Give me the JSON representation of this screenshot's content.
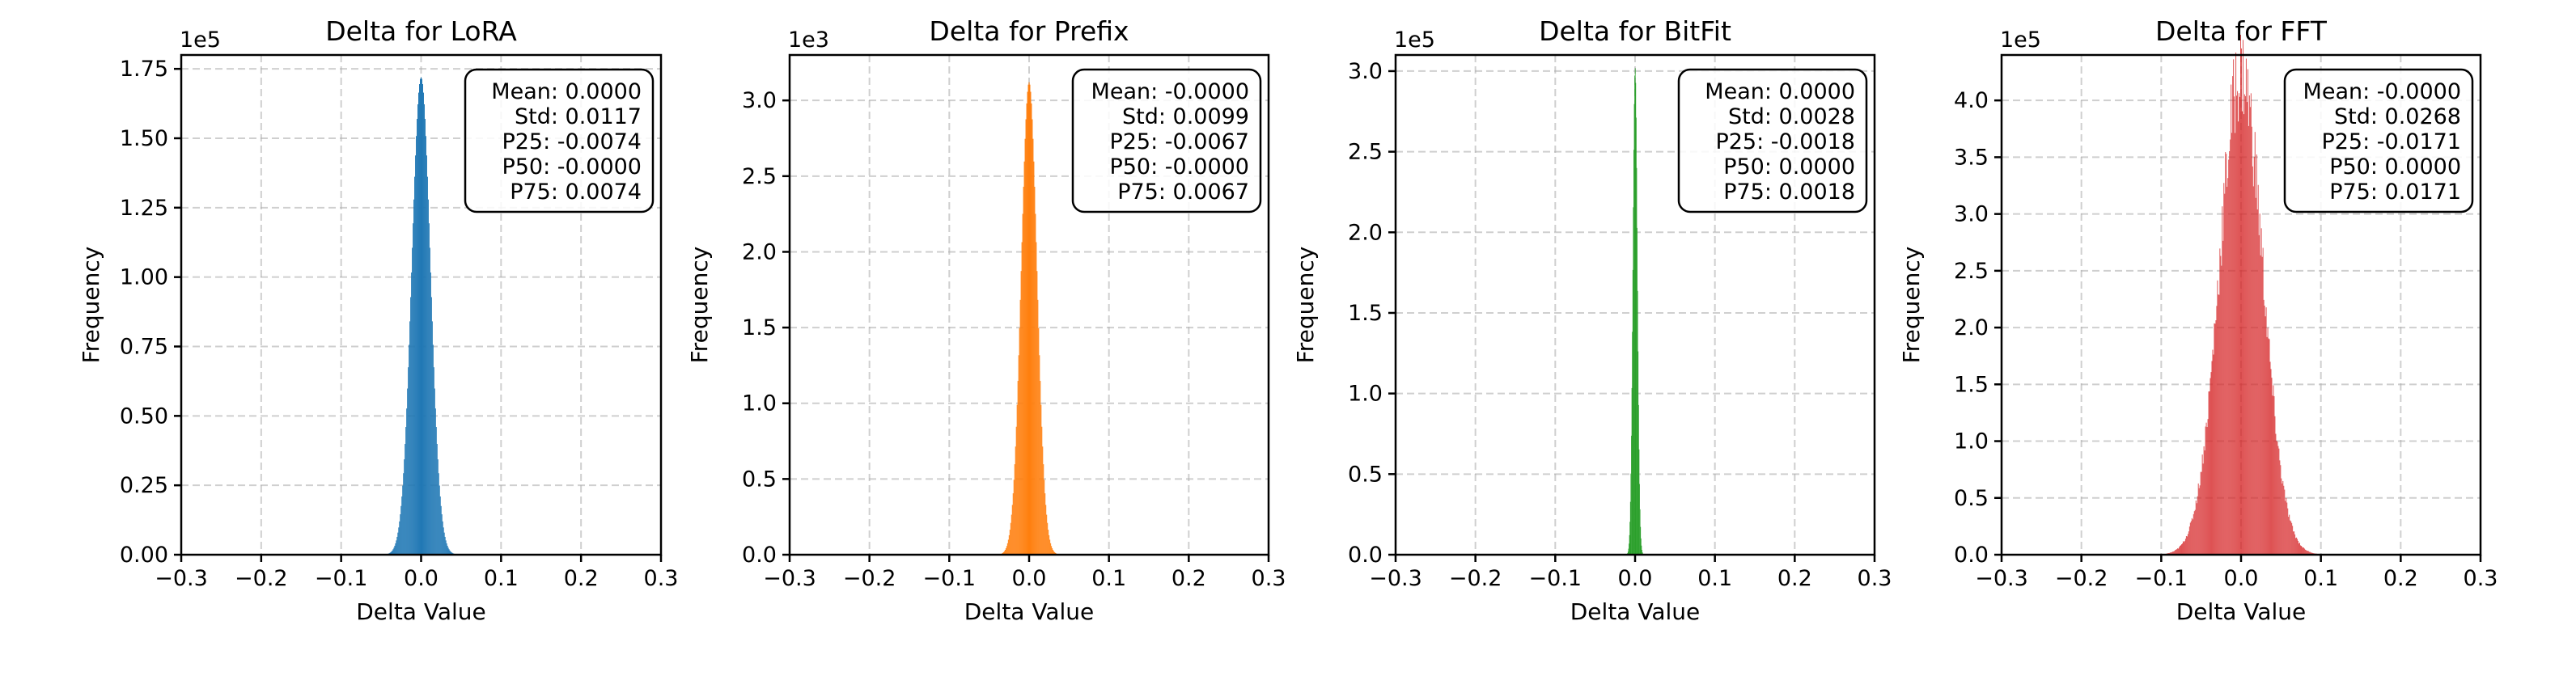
{
  "chart_data": [
    {
      "type": "bar",
      "title": "Delta for LoRA",
      "xlabel": "Delta Value",
      "ylabel": "Frequency",
      "xlim": [
        -0.3,
        0.3
      ],
      "ylim": [
        0,
        1.8
      ],
      "y_scale_label": "1e5",
      "xticks": [
        "−0.3",
        "−0.2",
        "−0.1",
        "0.0",
        "0.1",
        "0.2",
        "0.3"
      ],
      "yticks": [
        "0.00",
        "0.25",
        "0.50",
        "0.75",
        "1.00",
        "1.25",
        "1.50",
        "1.75"
      ],
      "ytick_values": [
        0,
        0.25,
        0.5,
        0.75,
        1.0,
        1.25,
        1.5,
        1.75
      ],
      "grid": true,
      "color": "#1f77b4",
      "distribution": {
        "mean": 0.0,
        "std": 0.0117,
        "peak": 1.72
      },
      "stats": [
        "Mean: 0.0000",
        "Std: 0.0117",
        "P25: -0.0074",
        "P50: -0.0000",
        "P75: 0.0074"
      ],
      "stats_placement": "top-right"
    },
    {
      "type": "bar",
      "title": "Delta for Prefix",
      "xlabel": "Delta Value",
      "ylabel": "Frequency",
      "xlim": [
        -0.3,
        0.3
      ],
      "ylim": [
        0,
        3.3
      ],
      "y_scale_label": "1e3",
      "xticks": [
        "−0.3",
        "−0.2",
        "−0.1",
        "0.0",
        "0.1",
        "0.2",
        "0.3"
      ],
      "yticks": [
        "0.0",
        "0.5",
        "1.0",
        "1.5",
        "2.0",
        "2.5",
        "3.0"
      ],
      "ytick_values": [
        0,
        0.5,
        1.0,
        1.5,
        2.0,
        2.5,
        3.0
      ],
      "grid": true,
      "color": "#ff7f0e",
      "distribution": {
        "mean": 0.0,
        "std": 0.0099,
        "peak": 3.12
      },
      "stats": [
        "Mean: -0.0000",
        "Std: 0.0099",
        "P25: -0.0067",
        "P50: -0.0000",
        "P75: 0.0067"
      ],
      "stats_placement": "top-right"
    },
    {
      "type": "bar",
      "title": "Delta for BitFit",
      "xlabel": "Delta Value",
      "ylabel": "Frequency",
      "xlim": [
        -0.3,
        0.3
      ],
      "ylim": [
        0,
        3.1
      ],
      "y_scale_label": "1e5",
      "xticks": [
        "−0.3",
        "−0.2",
        "−0.1",
        "0.0",
        "0.1",
        "0.2",
        "0.3"
      ],
      "yticks": [
        "0.0",
        "0.5",
        "1.0",
        "1.5",
        "2.0",
        "2.5",
        "3.0"
      ],
      "ytick_values": [
        0,
        0.5,
        1.0,
        1.5,
        2.0,
        2.5,
        3.0
      ],
      "grid": true,
      "color": "#2ca02c",
      "distribution": {
        "mean": 0.0,
        "std": 0.0028,
        "peak": 3.02
      },
      "stats": [
        "Mean: 0.0000",
        "Std: 0.0028",
        "P25: -0.0018",
        "P50: 0.0000",
        "P75: 0.0018"
      ],
      "stats_placement": "top-right"
    },
    {
      "type": "bar",
      "title": "Delta for FFT",
      "xlabel": "Delta Value",
      "ylabel": "Frequency",
      "xlim": [
        -0.3,
        0.3
      ],
      "ylim": [
        0,
        4.4
      ],
      "y_scale_label": "1e5",
      "xticks": [
        "−0.3",
        "−0.2",
        "−0.1",
        "0.0",
        "0.1",
        "0.2",
        "0.3"
      ],
      "yticks": [
        "0.0",
        "0.5",
        "1.0",
        "1.5",
        "2.0",
        "2.5",
        "3.0",
        "3.5",
        "4.0"
      ],
      "ytick_values": [
        0,
        0.5,
        1.0,
        1.5,
        2.0,
        2.5,
        3.0,
        3.5,
        4.0
      ],
      "grid": true,
      "color": "#d62728",
      "distribution": {
        "mean": 0.0,
        "std": 0.0268,
        "peak": 4.25
      },
      "stats": [
        "Mean: -0.0000",
        "Std: 0.0268",
        "P25: -0.0171",
        "P50: 0.0000",
        "P75: 0.0171"
      ],
      "stats_placement": "top-right"
    }
  ]
}
